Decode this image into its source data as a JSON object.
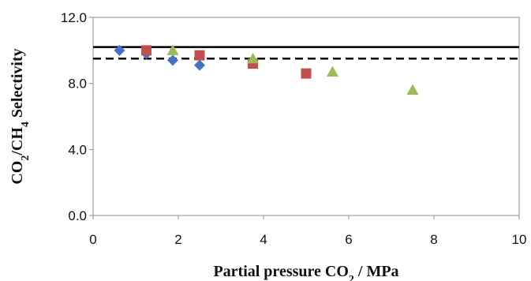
{
  "chart_data": {
    "type": "scatter",
    "title": "",
    "xlabel": {
      "parts": [
        {
          "text": "Partial pressure CO"
        },
        {
          "text": "2",
          "sub": true
        },
        {
          "text": " / MPa"
        }
      ]
    },
    "ylabel": {
      "parts": [
        {
          "text": "CO"
        },
        {
          "text": "2",
          "sub": true
        },
        {
          "text": "/CH"
        },
        {
          "text": "4",
          "sub": true
        },
        {
          "text": " Selectivity"
        }
      ]
    },
    "xlim": [
      0,
      10
    ],
    "ylim": [
      0,
      12
    ],
    "x_ticks": [
      0,
      2,
      4,
      6,
      8,
      10
    ],
    "x_tick_labels": [
      "0",
      "2",
      "4",
      "6",
      "8",
      "10"
    ],
    "y_ticks": [
      0,
      4,
      8,
      12
    ],
    "y_tick_labels": [
      "0.0",
      "4.0",
      "8.0",
      "12.0"
    ],
    "grid": false,
    "legend": "none",
    "series": [
      {
        "marker": "diamond",
        "color": "#4472C4",
        "x": [
          0.62,
          1.25,
          1.87,
          2.5
        ],
        "y": [
          10.0,
          9.8,
          9.4,
          9.1
        ]
      },
      {
        "marker": "square",
        "color": "#C0504D",
        "x": [
          1.25,
          2.5,
          3.75,
          5.0
        ],
        "y": [
          10.0,
          9.7,
          9.2,
          8.6
        ]
      },
      {
        "marker": "triangle",
        "color": "#9BBB59",
        "x": [
          1.87,
          3.75,
          5.62,
          7.5
        ],
        "y": [
          10.0,
          9.5,
          8.7,
          7.6
        ]
      }
    ],
    "reference_lines": [
      {
        "style": "solid",
        "y": 10.2,
        "color": "#000000"
      },
      {
        "style": "dashed",
        "y": 9.5,
        "color": "#000000"
      }
    ]
  }
}
